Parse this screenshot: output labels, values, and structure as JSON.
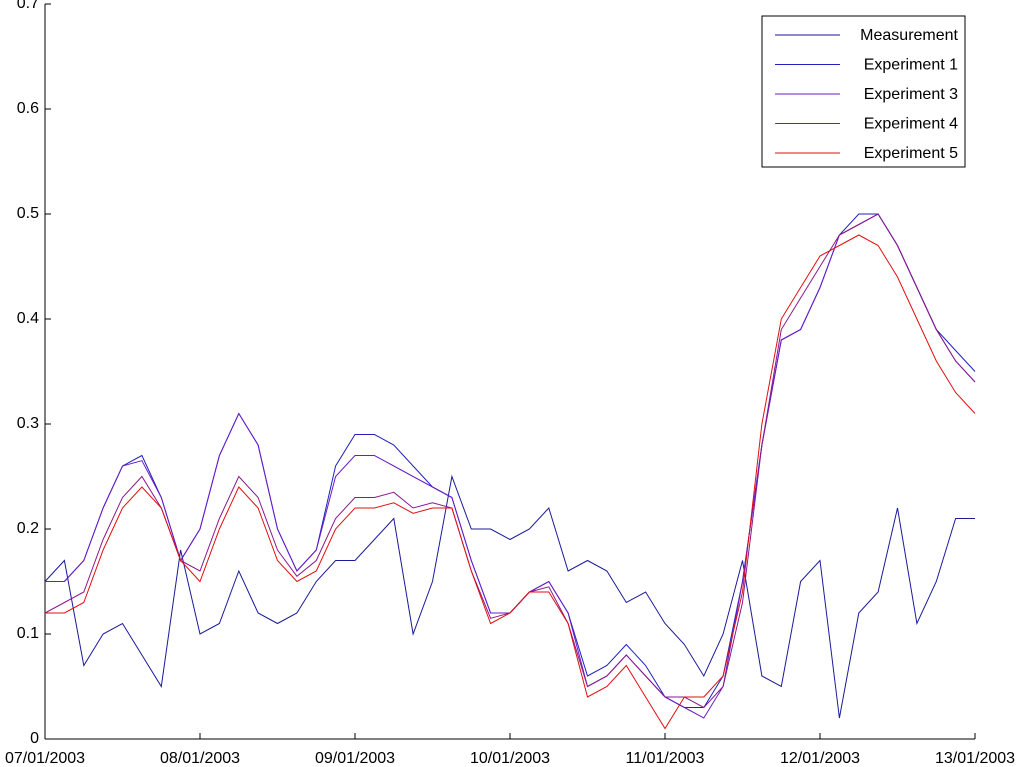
{
  "chart_data": {
    "type": "line",
    "x": [
      0,
      3,
      6,
      9,
      12,
      15,
      18,
      21,
      24,
      27,
      30,
      33,
      36,
      39,
      42,
      45,
      48,
      51,
      54,
      57,
      60,
      63,
      66,
      69,
      72,
      75,
      78,
      81,
      84,
      87,
      90,
      93,
      96,
      99,
      102,
      105,
      108,
      111,
      114,
      117,
      120,
      123,
      126,
      129,
      132,
      135,
      138,
      141,
      144
    ],
    "xlim": [
      0,
      144
    ],
    "xticks": [
      {
        "value": 0,
        "label": "07/01/2003"
      },
      {
        "value": 24,
        "label": "08/01/2003"
      },
      {
        "value": 48,
        "label": "09/01/2003"
      },
      {
        "value": 72,
        "label": "10/01/2003"
      },
      {
        "value": 96,
        "label": "11/01/2003"
      },
      {
        "value": 120,
        "label": "12/01/2003"
      },
      {
        "value": 144,
        "label": "13/01/2003"
      }
    ],
    "ylim": [
      0,
      0.7
    ],
    "yticks": [
      0,
      0.1,
      0.2,
      0.3,
      0.4,
      0.5,
      0.6,
      0.7
    ],
    "legend": "upper right",
    "series": [
      {
        "name": "Measurement",
        "color": "#1a1a9a",
        "values": [
          0.15,
          0.17,
          0.07,
          0.1,
          0.11,
          0.08,
          0.05,
          0.18,
          0.1,
          0.11,
          0.16,
          0.12,
          0.11,
          0.12,
          0.15,
          0.17,
          0.17,
          0.19,
          0.21,
          0.1,
          0.15,
          0.25,
          0.2,
          0.2,
          0.19,
          0.2,
          0.22,
          0.16,
          0.17,
          0.16,
          0.13,
          0.14,
          0.11,
          0.09,
          0.06,
          0.1,
          0.17,
          0.06,
          0.05,
          0.15,
          0.17,
          0.02,
          0.12,
          0.14,
          0.22,
          0.11,
          0.15,
          0.21,
          0.21
        ]
      },
      {
        "name": "Experiment 1",
        "color": "#2020c0",
        "values": [
          0.15,
          0.15,
          0.17,
          0.22,
          0.26,
          0.27,
          0.23,
          0.17,
          0.2,
          0.27,
          0.31,
          0.28,
          0.2,
          0.16,
          0.18,
          0.26,
          0.29,
          0.29,
          0.28,
          0.26,
          0.24,
          0.23,
          0.17,
          0.12,
          0.12,
          0.14,
          0.15,
          0.12,
          0.06,
          0.07,
          0.09,
          0.07,
          0.04,
          0.03,
          0.03,
          0.06,
          0.15,
          0.28,
          0.38,
          0.39,
          0.43,
          0.48,
          0.5,
          0.5,
          0.47,
          0.43,
          0.39,
          0.37,
          0.35
        ]
      },
      {
        "name": "Experiment 3",
        "color": "#6a1cc8",
        "values": [
          0.15,
          0.15,
          0.17,
          0.22,
          0.26,
          0.265,
          0.23,
          0.17,
          0.2,
          0.27,
          0.31,
          0.28,
          0.2,
          0.16,
          0.18,
          0.25,
          0.27,
          0.27,
          0.26,
          0.25,
          0.24,
          0.23,
          0.17,
          0.12,
          0.12,
          0.14,
          0.15,
          0.12,
          0.05,
          0.06,
          0.08,
          0.06,
          0.04,
          0.03,
          0.02,
          0.05,
          0.15,
          0.28,
          0.38,
          0.39,
          0.43,
          0.48,
          0.49,
          0.5,
          0.47,
          0.43,
          0.39,
          0.36,
          0.34
        ]
      },
      {
        "name": "Experiment 4",
        "color": "#8a1a8a",
        "values": [
          0.12,
          0.13,
          0.14,
          0.19,
          0.23,
          0.25,
          0.22,
          0.17,
          0.16,
          0.21,
          0.25,
          0.23,
          0.18,
          0.155,
          0.17,
          0.21,
          0.23,
          0.23,
          0.235,
          0.22,
          0.225,
          0.22,
          0.16,
          0.115,
          0.12,
          0.14,
          0.145,
          0.11,
          0.05,
          0.06,
          0.08,
          0.06,
          0.04,
          0.04,
          0.03,
          0.05,
          0.13,
          0.28,
          0.39,
          0.42,
          0.45,
          0.48,
          0.49,
          0.5,
          0.47,
          0.43,
          0.39,
          0.36,
          0.34
        ]
      },
      {
        "name": "Experiment 5",
        "color": "#e01010",
        "values": [
          0.12,
          0.12,
          0.13,
          0.18,
          0.22,
          0.24,
          0.22,
          0.17,
          0.15,
          0.2,
          0.24,
          0.22,
          0.17,
          0.15,
          0.16,
          0.2,
          0.22,
          0.22,
          0.225,
          0.215,
          0.22,
          0.22,
          0.16,
          0.11,
          0.12,
          0.14,
          0.14,
          0.11,
          0.04,
          0.05,
          0.07,
          0.04,
          0.01,
          0.04,
          0.04,
          0.06,
          0.14,
          0.3,
          0.4,
          0.43,
          0.46,
          0.47,
          0.48,
          0.47,
          0.44,
          0.4,
          0.36,
          0.33,
          0.31
        ]
      }
    ]
  }
}
